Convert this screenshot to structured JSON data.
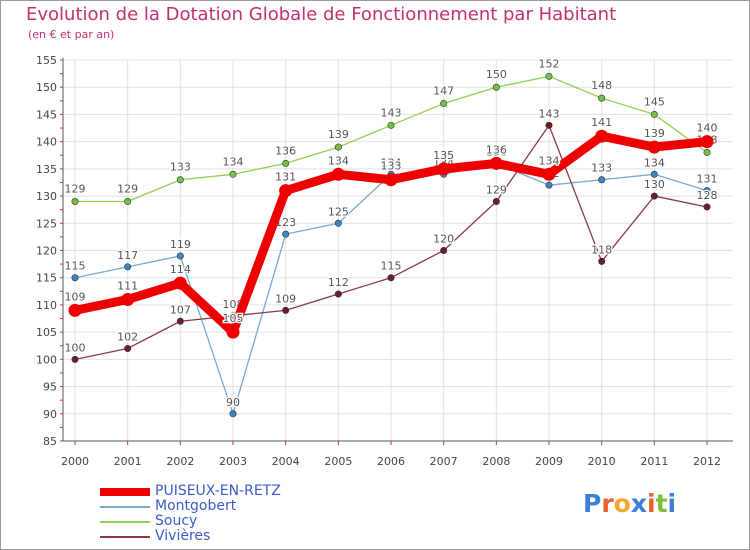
{
  "chart_data": {
    "type": "line",
    "title": "Evolution de la Dotation Globale de Fonctionnement par Habitant",
    "subtitle": "(en € et par an)",
    "xlabel": "",
    "ylabel": "",
    "x": [
      2000,
      2001,
      2002,
      2003,
      2004,
      2005,
      2006,
      2007,
      2008,
      2009,
      2010,
      2011,
      2012
    ],
    "ylim": [
      85,
      155
    ],
    "yticks": [
      85,
      90,
      95,
      100,
      105,
      110,
      115,
      120,
      125,
      130,
      135,
      140,
      145,
      150,
      155
    ],
    "grid": true,
    "legend_position": "bottom-left",
    "series": [
      {
        "name": "Soucy",
        "color": "#8fd14f",
        "point_color": "#77c043",
        "values": [
          129,
          129,
          133,
          134,
          136,
          139,
          143,
          147,
          150,
          152,
          148,
          145,
          138
        ]
      },
      {
        "name": "Montgobert",
        "color": "#79a9d0",
        "point_color": "#3d85c6",
        "values": [
          115,
          117,
          119,
          90,
          123,
          125,
          134,
          134,
          136,
          132,
          133,
          134,
          131
        ]
      },
      {
        "name": "Vivières",
        "color": "#8a3a46",
        "point_color": "#6b1e26",
        "values": [
          100,
          102,
          107,
          108,
          109,
          112,
          115,
          120,
          129,
          143,
          118,
          130,
          128
        ]
      },
      {
        "name": "PUISEUX-EN-RETZ",
        "color": "#ee0000",
        "point_color": "#ee0000",
        "values": [
          109,
          111,
          114,
          105,
          131,
          134,
          133,
          135,
          136,
          134,
          141,
          139,
          140
        ],
        "emphasis": true
      }
    ],
    "data_labels": [
      {
        "series": "Soucy",
        "labels": [
          "129",
          "129",
          "133",
          "134",
          "136",
          "139",
          "143",
          "147",
          "150",
          "152",
          "148",
          "145",
          "138"
        ]
      },
      {
        "series": "Montgobert",
        "labels": [
          "115",
          "117",
          "119",
          "90",
          "123",
          "125",
          "134",
          "134",
          "136",
          "132",
          "133",
          "134",
          "131"
        ]
      },
      {
        "series": "Vivières",
        "labels": [
          "100",
          "102",
          "107",
          "108",
          "109",
          "112",
          "115",
          "120",
          "129",
          "143",
          "118",
          "130",
          "128"
        ]
      },
      {
        "series": "PUISEUX-EN-RETZ",
        "labels": [
          "109",
          "111",
          "114",
          "105",
          "131",
          "134",
          "133",
          "135",
          "136",
          "134",
          "141",
          "139",
          "140"
        ]
      }
    ]
  },
  "legend": [
    {
      "name": "PUISEUX-EN-RETZ",
      "color": "#ee0000",
      "text_color": "#3b5bc8",
      "thickness": 8
    },
    {
      "name": "Montgobert",
      "color": "#79a9d0",
      "text_color": "#3b5bc8",
      "thickness": 2
    },
    {
      "name": "Soucy",
      "color": "#8fd14f",
      "text_color": "#3b5bc8",
      "thickness": 2
    },
    {
      "name": "Vivières",
      "color": "#8a3a46",
      "text_color": "#3b5bc8",
      "thickness": 2
    }
  ],
  "logo": {
    "text": "Proxiti",
    "letter_colors": [
      "#3d7fd6",
      "#e8622a",
      "#f0a92e",
      "#3d7fd6",
      "#e8622a",
      "#7cbf3a",
      "#3d7fd6"
    ]
  }
}
